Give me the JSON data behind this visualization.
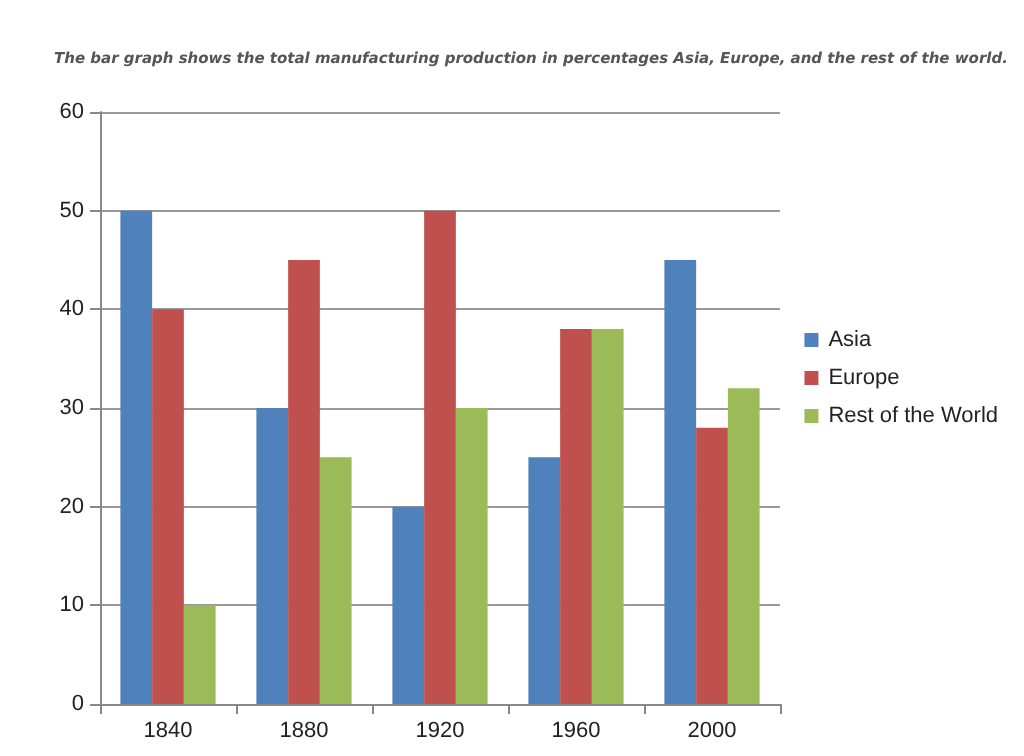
{
  "chart_data": {
    "type": "bar",
    "title": "The bar graph shows the total manufacturing production in percentages Asia, Europe, and the rest of the world.",
    "categories": [
      "1840",
      "1880",
      "1920",
      "1960",
      "2000"
    ],
    "series": [
      {
        "name": "Asia",
        "color": "#4f81bd",
        "values": [
          50,
          30,
          20,
          25,
          45
        ]
      },
      {
        "name": "Europe",
        "color": "#c0504d",
        "values": [
          40,
          45,
          50,
          38,
          28
        ]
      },
      {
        "name": "Rest of the World",
        "color": "#9bbb59",
        "values": [
          10,
          25,
          30,
          38,
          32
        ]
      }
    ],
    "ylim": [
      0,
      60
    ],
    "yticks": [
      0,
      10,
      20,
      30,
      40,
      50,
      60
    ],
    "grid": "y",
    "legend": "right"
  }
}
